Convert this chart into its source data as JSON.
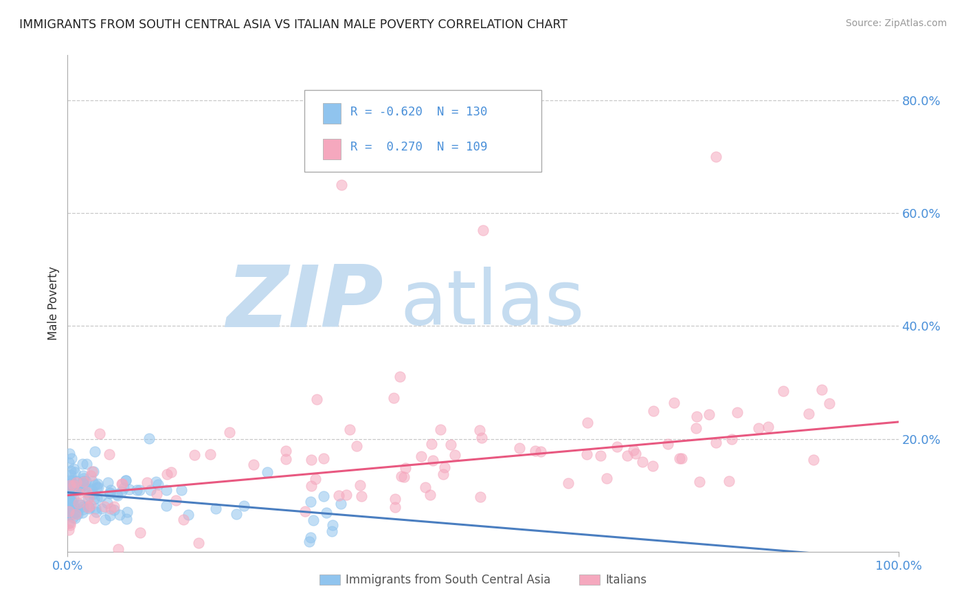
{
  "title": "IMMIGRANTS FROM SOUTH CENTRAL ASIA VS ITALIAN MALE POVERTY CORRELATION CHART",
  "source": "Source: ZipAtlas.com",
  "ylabel": "Male Poverty",
  "y_tick_labels": [
    "20.0%",
    "40.0%",
    "60.0%",
    "80.0%"
  ],
  "y_tick_values": [
    0.2,
    0.4,
    0.6,
    0.8
  ],
  "color_blue": "#90C4EE",
  "color_pink": "#F5A8BE",
  "color_line_blue": "#4A7EC0",
  "color_line_pink": "#E85880",
  "color_text": "#4A90D9",
  "r_blue": -0.62,
  "r_pink": 0.27,
  "n_blue": 130,
  "n_pink": 109,
  "regression_blue_slope": -0.12,
  "regression_blue_intercept": 0.105,
  "regression_pink_slope": 0.13,
  "regression_pink_intercept": 0.1,
  "watermark_zip_color": "#C5DCF0",
  "watermark_atlas_color": "#C5DCF0",
  "background_color": "#FFFFFF",
  "grid_color": "#C8C8C8",
  "axis_color": "#AAAAAA",
  "legend_label1": "Immigrants from South Central Asia",
  "legend_label2": "Italians",
  "ylim_max": 0.88,
  "xlim_max": 1.0
}
